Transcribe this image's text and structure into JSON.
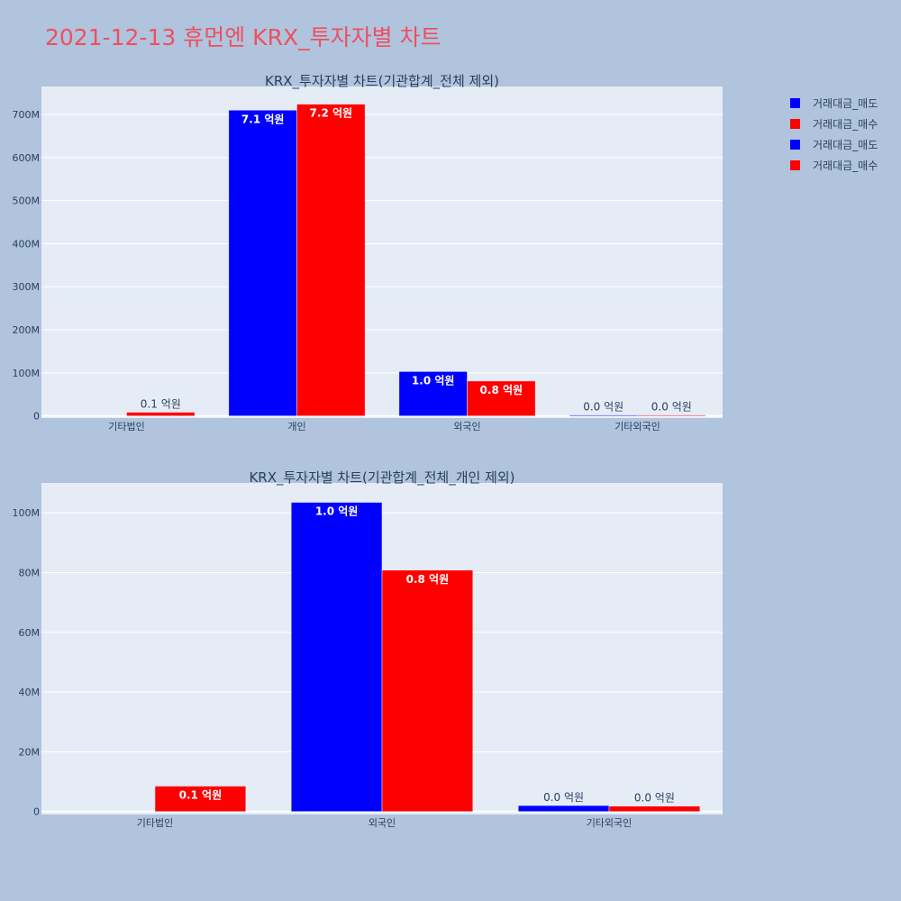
{
  "title": "2021-12-13 휴먼엔 KRX_투자자별 차트",
  "colors": {
    "sell": "#0000ff",
    "buy": "#ff0000",
    "plot_bg": "#e5ecf6",
    "page_bg": "#b0c4de"
  },
  "legend": [
    {
      "name": "거래대금_매도",
      "color": "#0000ff"
    },
    {
      "name": "거래대금_매수",
      "color": "#ff0000"
    },
    {
      "name": "거래대금_매도",
      "color": "#0000ff"
    },
    {
      "name": "거래대금_매수",
      "color": "#ff0000"
    }
  ],
  "chart_data": [
    {
      "type": "bar",
      "title": "KRX_투자자별 차트(기관합계_전체 제외)",
      "categories": [
        "기타법인",
        "개인",
        "외국인",
        "기타외국인"
      ],
      "series": [
        {
          "name": "거래대금_매도",
          "color": "#0000ff",
          "values": [
            0,
            710000000,
            103000000,
            2000000
          ],
          "labels": [
            "",
            "7.1 억원",
            "1.0 억원",
            "0.0 억원"
          ]
        },
        {
          "name": "거래대금_매수",
          "color": "#ff0000",
          "values": [
            8500000,
            724000000,
            81000000,
            2000000
          ],
          "labels": [
            "0.1 억원",
            "7.2 억원",
            "0.8 억원",
            "0.0 억원"
          ]
        }
      ],
      "ylim": [
        -5000000,
        765000000
      ],
      "yticks": [
        0,
        100000000,
        200000000,
        300000000,
        400000000,
        500000000,
        600000000,
        700000000
      ],
      "ytick_labels": [
        "0",
        "100M",
        "200M",
        "300M",
        "400M",
        "500M",
        "600M",
        "700M"
      ],
      "grid": true,
      "legend_position": "top-right"
    },
    {
      "type": "bar",
      "title": "KRX_투자자별 차트(기관합계_전체_개인 제외)",
      "categories": [
        "기타법인",
        "외국인",
        "기타외국인"
      ],
      "series": [
        {
          "name": "거래대금_매도",
          "color": "#0000ff",
          "values": [
            0,
            103500000,
            2000000
          ],
          "labels": [
            "",
            "1.0 억원",
            "0.0 억원"
          ]
        },
        {
          "name": "거래대금_매수",
          "color": "#ff0000",
          "values": [
            8500000,
            80800000,
            1800000
          ],
          "labels": [
            "0.1 억원",
            "0.8 억원",
            "0.0 억원"
          ]
        }
      ],
      "ylim": [
        -1000000,
        110000000
      ],
      "yticks": [
        0,
        20000000,
        40000000,
        60000000,
        80000000,
        100000000
      ],
      "ytick_labels": [
        "0",
        "20M",
        "40M",
        "60M",
        "80M",
        "100M"
      ],
      "grid": true,
      "legend_position": "top-right"
    }
  ]
}
